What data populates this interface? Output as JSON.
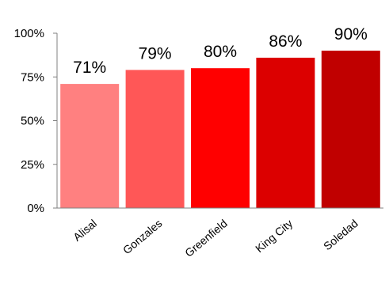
{
  "chart_data": {
    "type": "bar",
    "title": "",
    "xlabel": "",
    "ylabel": "",
    "categories": [
      "Alisal",
      "Gonzales",
      "Greenfield",
      "King City",
      "Soledad"
    ],
    "values": [
      71,
      79,
      80,
      86,
      90
    ],
    "data_labels": [
      "71%",
      "79%",
      "80%",
      "86%",
      "90%"
    ],
    "colors": [
      "#ff8080",
      "#ff5757",
      "#ff0000",
      "#dc0000",
      "#c00000"
    ],
    "ylim": [
      0,
      100
    ],
    "y_ticks": [
      0,
      25,
      50,
      75,
      100
    ],
    "y_tick_labels": [
      "0%",
      "25%",
      "50%",
      "75%",
      "100%"
    ],
    "grid": false,
    "legend": "none"
  }
}
